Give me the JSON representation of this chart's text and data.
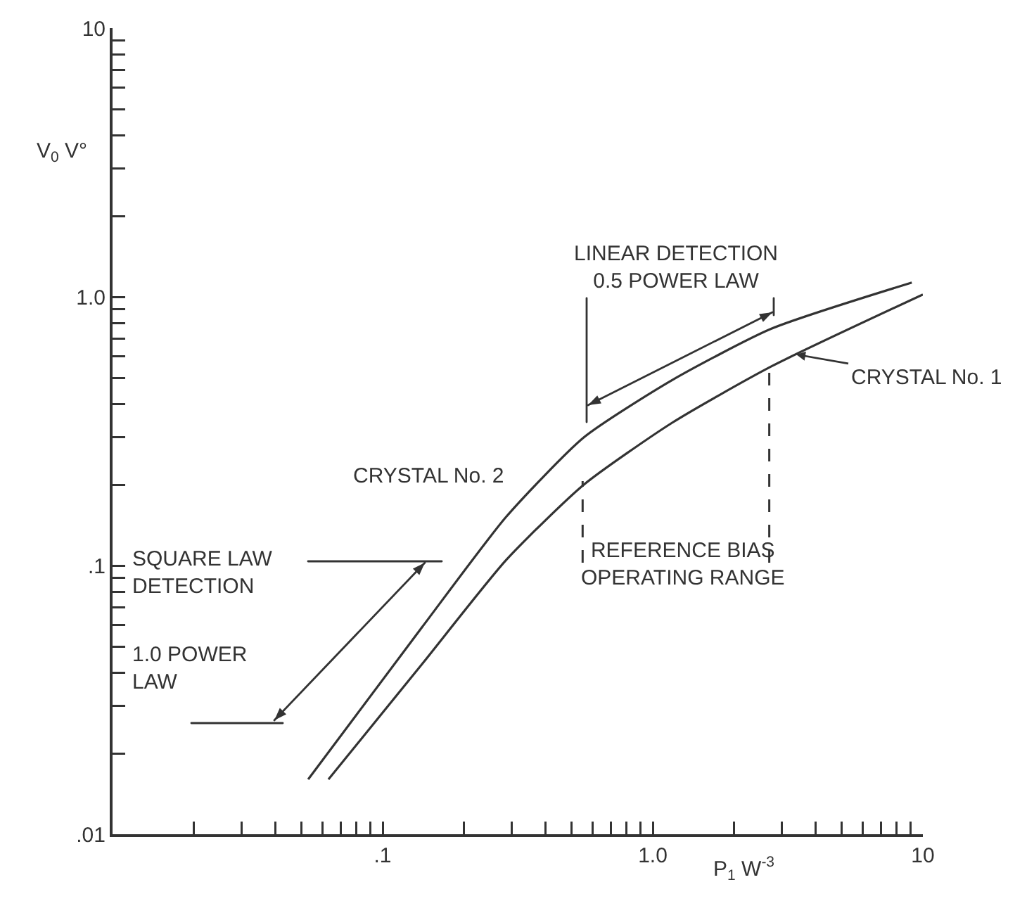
{
  "chart_data": {
    "type": "line",
    "xlabel": "P$_{1}$ W$^{-3}$",
    "ylabel": "V$_{0}$ V°",
    "log": "xy",
    "xlim": [
      0.01,
      10
    ],
    "ylim": [
      0.01,
      10
    ],
    "xticks": [
      {
        "value": 0.02,
        "label": null
      },
      {
        "value": 0.03,
        "label": null
      },
      {
        "value": 0.04,
        "label": null
      },
      {
        "value": 0.05,
        "label": null
      },
      {
        "value": 0.06,
        "label": null
      },
      {
        "value": 0.07,
        "label": null
      },
      {
        "value": 0.08,
        "label": null
      },
      {
        "value": 0.09,
        "label": null
      },
      {
        "value": 0.1,
        "label": ".1"
      },
      {
        "value": 0.2,
        "label": null
      },
      {
        "value": 0.3,
        "label": null
      },
      {
        "value": 0.4,
        "label": null
      },
      {
        "value": 0.5,
        "label": null
      },
      {
        "value": 0.6,
        "label": null
      },
      {
        "value": 0.7,
        "label": null
      },
      {
        "value": 0.8,
        "label": null
      },
      {
        "value": 0.9,
        "label": null
      },
      {
        "value": 1,
        "label": "1.0"
      },
      {
        "value": 2,
        "label": null
      },
      {
        "value": 3,
        "label": null
      },
      {
        "value": 4,
        "label": null
      },
      {
        "value": 5,
        "label": null
      },
      {
        "value": 6,
        "label": null
      },
      {
        "value": 7,
        "label": null
      },
      {
        "value": 8,
        "label": null
      },
      {
        "value": 9,
        "label": null
      },
      {
        "value": 10,
        "label": "10"
      }
    ],
    "yticks": [
      {
        "value": 0.01,
        "label": ".01"
      },
      {
        "value": 0.02,
        "label": null
      },
      {
        "value": 0.03,
        "label": null
      },
      {
        "value": 0.04,
        "label": null
      },
      {
        "value": 0.05,
        "label": null
      },
      {
        "value": 0.06,
        "label": null
      },
      {
        "value": 0.07,
        "label": null
      },
      {
        "value": 0.08,
        "label": null
      },
      {
        "value": 0.09,
        "label": null
      },
      {
        "value": 0.1,
        "label": ".1"
      },
      {
        "value": 0.2,
        "label": null
      },
      {
        "value": 0.3,
        "label": null
      },
      {
        "value": 0.4,
        "label": null
      },
      {
        "value": 0.5,
        "label": null
      },
      {
        "value": 0.6,
        "label": null
      },
      {
        "value": 0.7,
        "label": null
      },
      {
        "value": 0.8,
        "label": null
      },
      {
        "value": 0.9,
        "label": null
      },
      {
        "value": 1,
        "label": "1.0"
      },
      {
        "value": 2,
        "label": null
      },
      {
        "value": 3,
        "label": null
      },
      {
        "value": 4,
        "label": null
      },
      {
        "value": 5,
        "label": null
      },
      {
        "value": 6,
        "label": null
      },
      {
        "value": 7,
        "label": null
      },
      {
        "value": 8,
        "label": null
      },
      {
        "value": 9,
        "label": null
      },
      {
        "value": 10,
        "label": "10"
      }
    ],
    "series": [
      {
        "name": "CRYSTAL No. 1",
        "color": "#333333",
        "x": [
          0.063,
          0.14,
          0.287,
          0.556,
          1.18,
          2.74,
          10
        ],
        "values": [
          0.016,
          0.043,
          0.105,
          0.2,
          0.34,
          0.55,
          1.02
        ]
      },
      {
        "name": "CRYSTAL No. 2",
        "color": "#333333",
        "x": [
          0.053,
          0.14,
          0.287,
          0.556,
          1.18,
          2.74,
          9.1
        ],
        "values": [
          0.016,
          0.059,
          0.152,
          0.3,
          0.49,
          0.76,
          1.13
        ]
      }
    ],
    "ref_lines": [
      {
        "axis": "x",
        "value": 0.55,
        "line_style": "dashed",
        "color": "#333333"
      },
      {
        "axis": "x",
        "value": 2.7,
        "line_style": "dashed",
        "color": "#333333"
      }
    ],
    "annotations": [
      "LINEAR DETECTION\n0.5 POWER LAW",
      "SQUARE LAW\nDETECTION",
      "1.0 POWER\nLAW",
      "REFERENCE BIAS\nOPERATING RANGE"
    ],
    "grid": false,
    "legend": false,
    "marker": "none",
    "line_style": "solid"
  }
}
